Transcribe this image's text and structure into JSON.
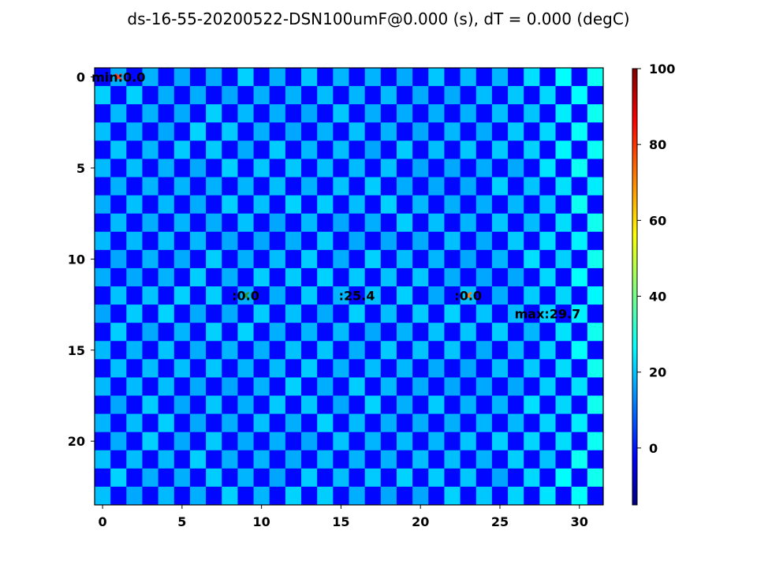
{
  "chart_data": {
    "type": "heatmap",
    "title": "ds-16-55-20200522-DSN100umF@0.000 (s), dT = 0.000 (degC)",
    "rows": 24,
    "cols": 32,
    "pattern": "checkerboard",
    "dark_cell_value": 0.0,
    "light_cell_value_range": [
      18,
      30
    ],
    "x_ticks": [
      0,
      5,
      10,
      15,
      20,
      25,
      30
    ],
    "y_ticks": [
      0,
      5,
      10,
      15,
      20
    ],
    "colorbar": {
      "colormap": "jet",
      "min": -15,
      "max": 100,
      "ticks": [
        0,
        20,
        40,
        60,
        80,
        100
      ]
    },
    "annotations": [
      {
        "label": "min:0.0",
        "x": 1,
        "y": 0,
        "marker": "x",
        "marker_color": "#ff3b1f"
      },
      {
        "label": ":0.0",
        "x": 9,
        "y": 12,
        "marker": "x",
        "marker_color": "#2c9c2c"
      },
      {
        "label": ":25.4",
        "x": 16,
        "y": 12,
        "marker": "none",
        "marker_color": ""
      },
      {
        "label": ":0.0",
        "x": 23,
        "y": 12,
        "marker": "x",
        "marker_color": "#ff7f0e"
      },
      {
        "label": "max:29.7",
        "x": 28,
        "y": 13,
        "marker": "none",
        "marker_color": ""
      }
    ]
  }
}
